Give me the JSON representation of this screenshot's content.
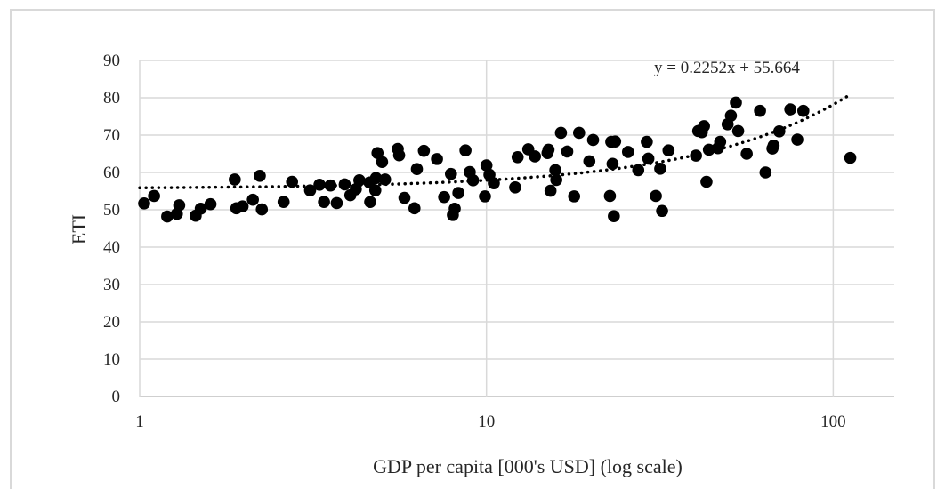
{
  "chart_data": {
    "type": "scatter",
    "title": "",
    "xlabel": "GDP per capita [000's USD] (log scale)",
    "ylabel": "ETI",
    "x_scale": "log",
    "xlim": [
      1,
      150
    ],
    "ylim": [
      0,
      90
    ],
    "x_ticks": [
      1,
      10,
      100
    ],
    "x_tick_labels": [
      "1",
      "10",
      "100"
    ],
    "y_ticks": [
      0,
      10,
      20,
      30,
      40,
      50,
      60,
      70,
      80,
      90
    ],
    "y_tick_labels": [
      "0",
      "10",
      "20",
      "30",
      "40",
      "50",
      "60",
      "70",
      "80",
      "90"
    ],
    "grid": "vertical and horizontal major gridlines",
    "legend": "none",
    "marker_color": "#000000",
    "trendline": {
      "style": "dotted",
      "equation": "y = 0.2252x + 55.664",
      "slope": 0.2252,
      "intercept": 55.664,
      "x_range": [
        1,
        112
      ]
    },
    "points": [
      [
        1.03,
        51.7
      ],
      [
        1.1,
        53.7
      ],
      [
        1.2,
        48.2
      ],
      [
        1.28,
        48.9
      ],
      [
        1.3,
        51.2
      ],
      [
        1.45,
        48.4
      ],
      [
        1.5,
        50.3
      ],
      [
        1.6,
        51.5
      ],
      [
        1.88,
        58.1
      ],
      [
        1.9,
        50.4
      ],
      [
        1.98,
        50.9
      ],
      [
        2.12,
        52.7
      ],
      [
        2.22,
        59.1
      ],
      [
        2.25,
        50.1
      ],
      [
        2.6,
        52.1
      ],
      [
        2.75,
        57.5
      ],
      [
        3.1,
        55.2
      ],
      [
        3.3,
        56.7
      ],
      [
        3.4,
        52.1
      ],
      [
        3.55,
        56.5
      ],
      [
        3.7,
        51.8
      ],
      [
        3.9,
        56.8
      ],
      [
        4.05,
        53.9
      ],
      [
        4.2,
        55.5
      ],
      [
        4.3,
        57.9
      ],
      [
        4.6,
        57.3
      ],
      [
        4.62,
        52.1
      ],
      [
        4.78,
        55.2
      ],
      [
        4.8,
        58.5
      ],
      [
        4.85,
        65.2
      ],
      [
        5.0,
        62.8
      ],
      [
        5.1,
        58.1
      ],
      [
        5.55,
        66.3
      ],
      [
        5.6,
        64.6
      ],
      [
        5.8,
        53.2
      ],
      [
        6.2,
        50.4
      ],
      [
        6.3,
        60.9
      ],
      [
        6.6,
        65.8
      ],
      [
        7.2,
        63.6
      ],
      [
        7.55,
        53.4
      ],
      [
        7.9,
        59.6
      ],
      [
        8.0,
        48.6
      ],
      [
        8.1,
        50.3
      ],
      [
        8.3,
        54.5
      ],
      [
        8.7,
        65.9
      ],
      [
        8.95,
        60.1
      ],
      [
        9.15,
        57.9
      ],
      [
        9.9,
        53.6
      ],
      [
        10.0,
        61.9
      ],
      [
        10.2,
        59.4
      ],
      [
        10.5,
        57.1
      ],
      [
        12.1,
        56.0
      ],
      [
        12.3,
        64.1
      ],
      [
        13.2,
        66.2
      ],
      [
        13.8,
        64.3
      ],
      [
        15.0,
        65.2
      ],
      [
        15.1,
        66.1
      ],
      [
        15.3,
        55.1
      ],
      [
        15.8,
        60.6
      ],
      [
        15.9,
        58.0
      ],
      [
        16.4,
        70.6
      ],
      [
        17.1,
        65.6
      ],
      [
        17.9,
        53.6
      ],
      [
        18.5,
        70.6
      ],
      [
        19.8,
        63.0
      ],
      [
        20.3,
        68.7
      ],
      [
        22.7,
        53.7
      ],
      [
        22.9,
        68.2
      ],
      [
        23.1,
        62.3
      ],
      [
        23.3,
        48.3
      ],
      [
        23.5,
        68.3
      ],
      [
        25.6,
        65.5
      ],
      [
        27.4,
        60.6
      ],
      [
        29.0,
        68.2
      ],
      [
        29.3,
        63.7
      ],
      [
        30.8,
        53.7
      ],
      [
        31.7,
        61.0
      ],
      [
        32.1,
        49.7
      ],
      [
        33.5,
        65.9
      ],
      [
        40.2,
        64.5
      ],
      [
        40.8,
        71.1
      ],
      [
        41.8,
        70.8
      ],
      [
        42.4,
        72.4
      ],
      [
        43.1,
        57.5
      ],
      [
        43.8,
        66.1
      ],
      [
        46.5,
        66.5
      ],
      [
        47.2,
        68.2
      ],
      [
        49.6,
        72.9
      ],
      [
        50.7,
        75.2
      ],
      [
        52.4,
        78.7
      ],
      [
        53.2,
        71.1
      ],
      [
        56.3,
        65.0
      ],
      [
        61.5,
        76.5
      ],
      [
        63.8,
        60.0
      ],
      [
        66.8,
        66.4
      ],
      [
        67.3,
        67.2
      ],
      [
        69.9,
        71.0
      ],
      [
        75.2,
        76.9
      ],
      [
        78.8,
        68.8
      ],
      [
        82.0,
        76.5
      ],
      [
        112.0,
        63.9
      ]
    ]
  }
}
